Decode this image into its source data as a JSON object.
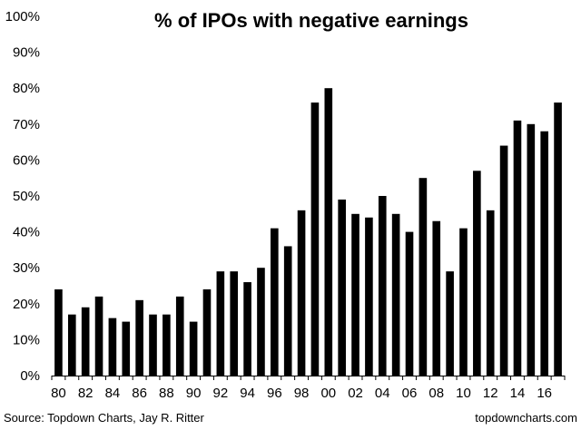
{
  "chart_data": {
    "type": "bar",
    "title": "% of IPOs with negative earnings",
    "xlabel": "",
    "ylabel": "",
    "ylim": [
      0,
      100
    ],
    "y_ticks": [
      "0%",
      "10%",
      "20%",
      "30%",
      "40%",
      "50%",
      "60%",
      "70%",
      "80%",
      "90%",
      "100%"
    ],
    "x_tick_labels": [
      "80",
      "82",
      "84",
      "86",
      "88",
      "90",
      "92",
      "94",
      "96",
      "98",
      "00",
      "02",
      "04",
      "06",
      "08",
      "10",
      "12",
      "14",
      "16"
    ],
    "categories": [
      "1980",
      "1981",
      "1982",
      "1983",
      "1984",
      "1985",
      "1986",
      "1987",
      "1988",
      "1989",
      "1990",
      "1991",
      "1992",
      "1993",
      "1994",
      "1995",
      "1996",
      "1997",
      "1998",
      "1999",
      "2000",
      "2001",
      "2002",
      "2003",
      "2004",
      "2005",
      "2006",
      "2007",
      "2008",
      "2009",
      "2010",
      "2011",
      "2012",
      "2013",
      "2014",
      "2015",
      "2016",
      "2017"
    ],
    "values": [
      24,
      17,
      19,
      22,
      16,
      15,
      21,
      17,
      17,
      22,
      15,
      24,
      29,
      29,
      26,
      30,
      41,
      36,
      46,
      76,
      80,
      49,
      45,
      44,
      50,
      45,
      40,
      55,
      43,
      29,
      41,
      57,
      46,
      64,
      71,
      70,
      68,
      76
    ],
    "grid": false,
    "bar_color": "#000000",
    "source": "Source: Topdown Charts, Jay R. Ritter",
    "watermark": "topdowncharts.com"
  }
}
